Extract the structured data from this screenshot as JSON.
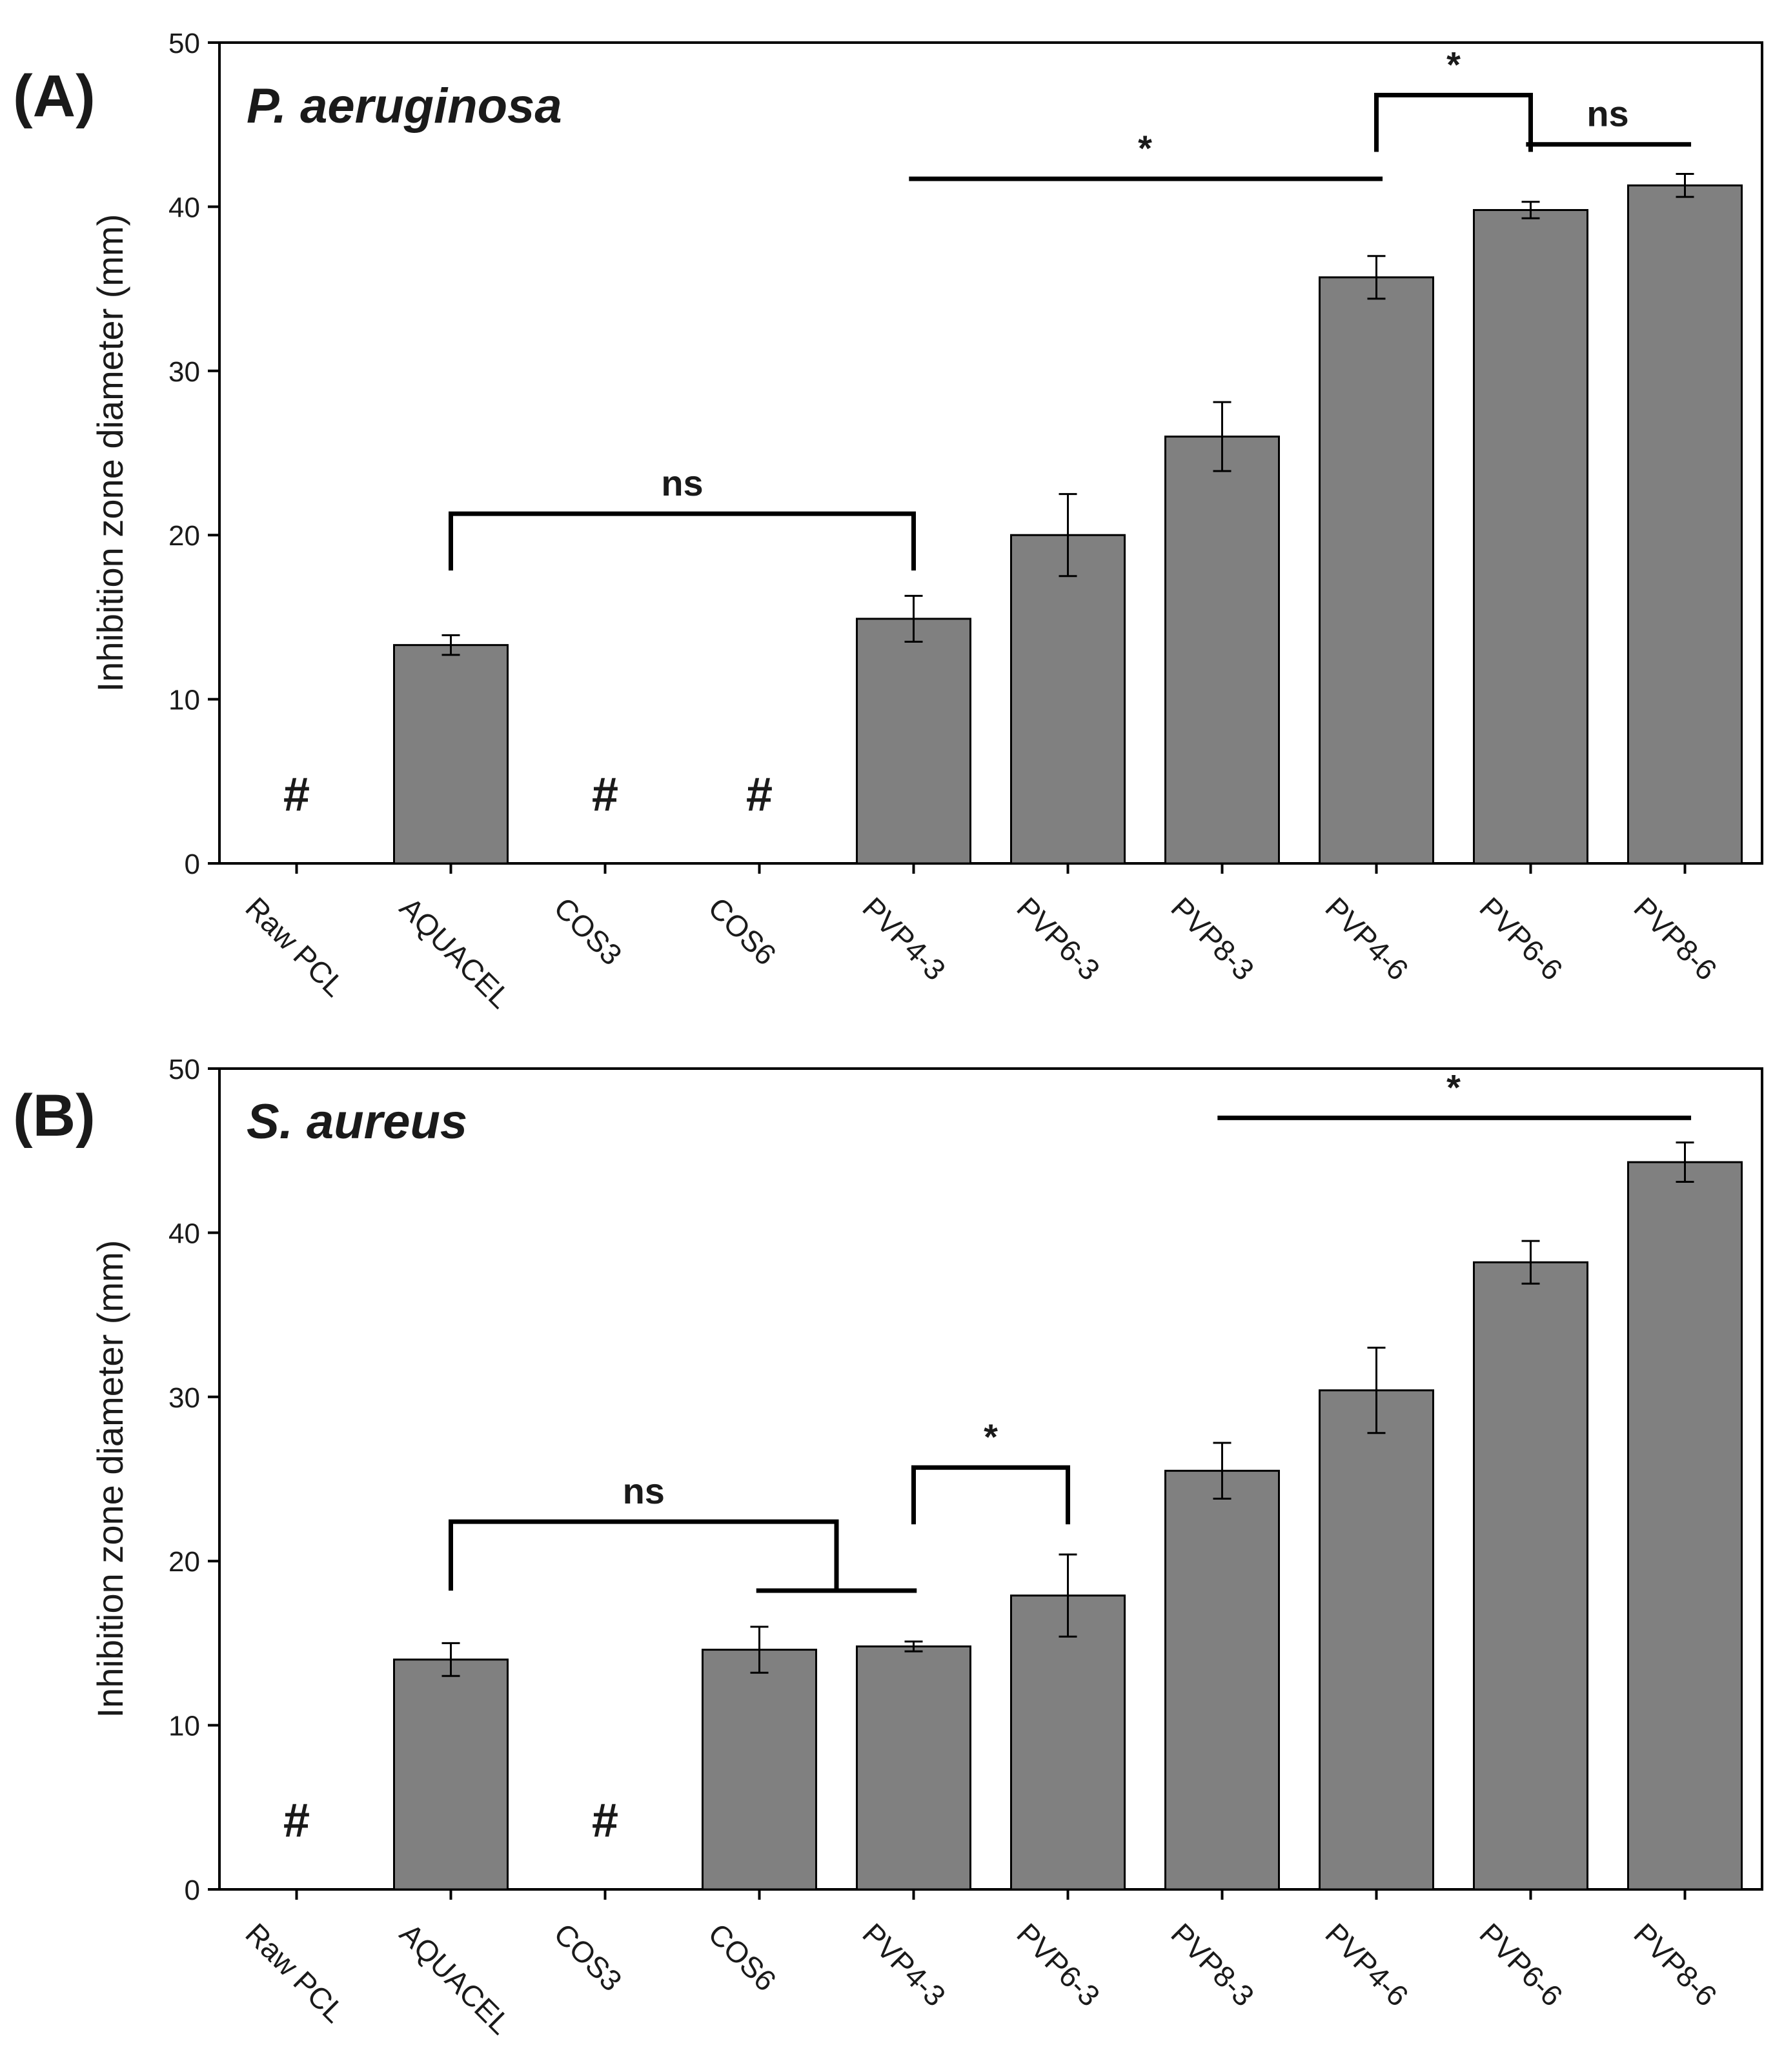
{
  "chart_data": [
    {
      "type": "bar",
      "panel_label": "(A)",
      "organism": "P. aeruginosa",
      "ylabel": "Inhibition zone diameter (mm)",
      "ylim": [
        0,
        50
      ],
      "yticks": [
        0,
        10,
        20,
        30,
        40,
        50
      ],
      "categories": [
        "Raw PCL",
        "AQUACEL",
        "COS3",
        "COS6",
        "PVP4-3",
        "PVP6-3",
        "PVP8-3",
        "PVP4-6",
        "PVP6-6",
        "PVP8-6"
      ],
      "values": [
        null,
        13.3,
        null,
        null,
        14.9,
        20.0,
        26.0,
        35.7,
        39.8,
        41.3
      ],
      "errors": [
        null,
        0.6,
        null,
        null,
        1.4,
        2.5,
        2.1,
        1.3,
        0.5,
        0.7
      ],
      "no_zone_marker": "#",
      "bar_color": "#808080",
      "significance": [
        {
          "text": "ns",
          "kind": "bracket",
          "from": 1,
          "to": 4,
          "level": 21.3
        },
        {
          "text": "*",
          "kind": "line",
          "from": 4,
          "to": 7,
          "level": 41.7
        },
        {
          "text": "*",
          "kind": "bracket",
          "from": 7,
          "to": 8,
          "level": 46.8
        },
        {
          "text": "ns",
          "kind": "line",
          "from": 8,
          "to": 9,
          "level": 43.8
        }
      ]
    },
    {
      "type": "bar",
      "panel_label": "(B)",
      "organism": "S. aureus",
      "ylabel": "Inhibition zone diameter (mm)",
      "ylim": [
        0,
        50
      ],
      "yticks": [
        0,
        10,
        20,
        30,
        40,
        50
      ],
      "categories": [
        "Raw PCL",
        "AQUACEL",
        "COS3",
        "COS6",
        "PVP4-3",
        "PVP6-3",
        "PVP8-3",
        "PVP4-6",
        "PVP6-6",
        "PVP8-6"
      ],
      "values": [
        null,
        14.0,
        null,
        14.6,
        14.8,
        17.9,
        25.5,
        30.4,
        38.2,
        44.3
      ],
      "errors": [
        null,
        1.0,
        null,
        1.4,
        0.3,
        2.5,
        1.7,
        2.6,
        1.3,
        1.2
      ],
      "no_zone_marker": "#",
      "bar_color": "#808080",
      "significance": [
        {
          "text": "ns",
          "kind": "nested",
          "from": 1,
          "sub_from": 3,
          "sub_to": 4,
          "level": 22.4,
          "sub_level": 18.2
        },
        {
          "text": "*",
          "kind": "bracket",
          "from": 4,
          "to": 5,
          "level": 25.7
        },
        {
          "text": "*",
          "kind": "line",
          "from": 6,
          "to": 9,
          "level": 47.0
        }
      ]
    }
  ]
}
